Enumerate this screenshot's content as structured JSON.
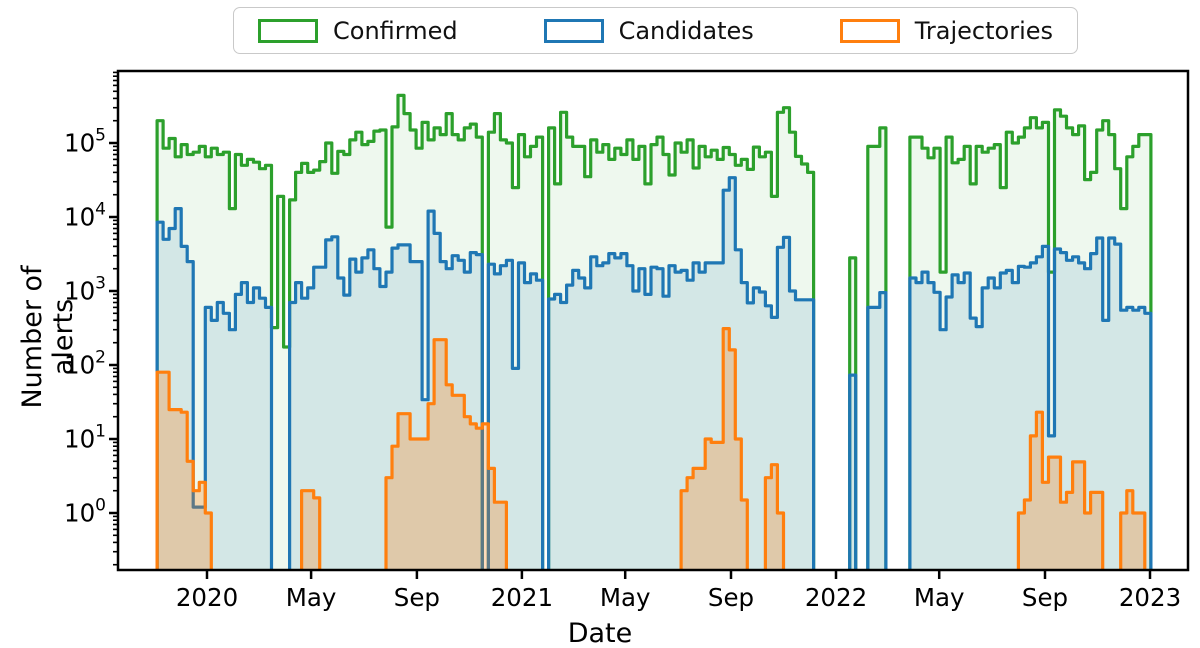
{
  "chart_data": {
    "type": "step-histogram",
    "title": "",
    "xlabel": "Date",
    "ylabel": "Number of alerts",
    "y_scale": "log",
    "ylim": [
      0.17,
      970000
    ],
    "grid": false,
    "legend_position": "top-center",
    "bin_start_date": "2019-11-04",
    "bin_days": 7,
    "xticks": [
      {
        "label": "2020",
        "date": "2020-01-01"
      },
      {
        "label": "May",
        "date": "2020-05-01"
      },
      {
        "label": "Sep",
        "date": "2020-09-01"
      },
      {
        "label": "2021",
        "date": "2021-01-01"
      },
      {
        "label": "May",
        "date": "2021-05-01"
      },
      {
        "label": "Sep",
        "date": "2021-09-01"
      },
      {
        "label": "2022",
        "date": "2022-01-01"
      },
      {
        "label": "May",
        "date": "2022-05-01"
      },
      {
        "label": "Sep",
        "date": "2022-09-01"
      },
      {
        "label": "2023",
        "date": "2023-01-01"
      }
    ],
    "yticks": [
      "10^0",
      "10^1",
      "10^2",
      "10^3",
      "10^4",
      "10^5"
    ],
    "series": [
      {
        "name": "Confirmed",
        "color": "#2ca02c",
        "fill_alpha": 0.08,
        "values": [
          200000,
          85000,
          115000,
          65000,
          95000,
          70000,
          75000,
          90000,
          65000,
          85000,
          70000,
          75000,
          13000,
          70000,
          50000,
          60000,
          55000,
          45000,
          50000,
          320,
          19000,
          175,
          17000,
          40000,
          53000,
          40000,
          43000,
          56000,
          100000,
          39000,
          77000,
          70000,
          110000,
          140000,
          95000,
          105000,
          145000,
          150000,
          7300,
          165000,
          440000,
          250000,
          150000,
          85000,
          190000,
          110000,
          160000,
          130000,
          250000,
          130000,
          110000,
          160000,
          180000,
          120000,
          0,
          140000,
          250000,
          110000,
          100000,
          25000,
          130000,
          65000,
          90000,
          120000,
          0,
          160000,
          28000,
          260000,
          120000,
          90000,
          90000,
          35000,
          110000,
          75000,
          95000,
          60000,
          85000,
          70000,
          110000,
          60000,
          90000,
          28000,
          95000,
          120000,
          70000,
          37000,
          100000,
          75000,
          110000,
          46000,
          90000,
          65000,
          80000,
          60000,
          87000,
          70000,
          50000,
          60000,
          44000,
          88000,
          65000,
          75000,
          19000,
          260000,
          300000,
          140000,
          66000,
          52000,
          40000,
          null,
          null,
          null,
          null,
          null,
          null,
          2800,
          null,
          null,
          90000,
          90000,
          160000,
          null,
          null,
          null,
          null,
          120000,
          120000,
          85000,
          63000,
          85000,
          1800,
          120000,
          54000,
          60000,
          90000,
          28000,
          90000,
          75000,
          85000,
          95000,
          25000,
          140000,
          100000,
          120000,
          160000,
          220000,
          160000,
          190000,
          1800,
          280000,
          230000,
          160000,
          130000,
          170000,
          32000,
          40000,
          150000,
          200000,
          130000,
          45000,
          13000,
          65000,
          90000,
          130000,
          130000
        ]
      },
      {
        "name": "Candidates",
        "color": "#1f77b4",
        "fill_alpha": 0.13,
        "values": [
          8500,
          5000,
          7000,
          13000,
          4000,
          2500,
          1.2,
          1.2,
          600,
          400,
          700,
          500,
          300,
          900,
          1300,
          700,
          1100,
          800,
          600,
          0,
          0,
          0,
          700,
          1300,
          800,
          1100,
          2100,
          2100,
          4900,
          5400,
          1500,
          880,
          2700,
          1800,
          2800,
          3600,
          2000,
          1150,
          1800,
          3800,
          4200,
          4200,
          2500,
          2500,
          34,
          12000,
          6000,
          2500,
          2000,
          3000,
          2600,
          1800,
          3300,
          3100,
          0,
          2300,
          1700,
          2200,
          2600,
          90,
          2400,
          1300,
          1700,
          1400,
          0,
          780,
          900,
          700,
          1200,
          1900,
          1500,
          1100,
          2900,
          2200,
          2400,
          3200,
          2800,
          3200,
          2200,
          1000,
          2000,
          900,
          2100,
          2000,
          850,
          2200,
          1800,
          1900,
          1400,
          2400,
          1800,
          2400,
          2400,
          2400,
          23000,
          34000,
          3600,
          1300,
          690,
          1100,
          970,
          630,
          440,
          3900,
          5300,
          1000,
          760,
          760,
          760,
          null,
          null,
          null,
          null,
          null,
          null,
          73,
          null,
          null,
          600,
          600,
          950,
          null,
          null,
          null,
          null,
          1500,
          1300,
          1800,
          1300,
          960,
          300,
          830,
          1650,
          1300,
          1750,
          430,
          330,
          1100,
          1500,
          1100,
          1750,
          1900,
          1300,
          2150,
          2100,
          2400,
          2900,
          4000,
          11,
          3700,
          3300,
          2600,
          2900,
          2400,
          2000,
          3200,
          5200,
          400,
          5200,
          4300,
          550,
          600,
          550,
          600,
          500
        ]
      },
      {
        "name": "Trajectories",
        "color": "#ff7f0e",
        "fill_alpha": 0.28,
        "values": [
          80,
          80,
          25,
          25,
          23,
          5,
          2,
          2.6,
          1,
          0,
          0,
          0,
          0,
          0,
          0,
          0,
          0,
          0,
          0,
          0,
          0,
          0,
          0,
          0,
          2,
          2,
          1.6,
          0,
          0,
          0,
          0,
          0,
          0,
          0,
          0,
          0,
          0,
          0,
          3,
          8,
          22,
          22,
          10,
          10,
          10,
          30,
          220,
          220,
          54,
          39,
          39,
          20,
          16,
          14,
          16,
          4,
          1.4,
          1.4,
          0,
          0,
          0,
          0,
          0,
          0,
          0,
          0,
          0,
          0,
          0,
          0,
          0,
          0,
          0,
          0,
          0,
          0,
          0,
          0,
          0,
          0,
          0,
          0,
          0,
          0,
          0,
          0,
          0,
          2,
          3,
          4,
          4,
          10,
          9,
          9,
          310,
          160,
          10,
          1.5,
          0,
          0,
          0,
          3,
          4.5,
          1,
          0,
          0,
          0,
          0,
          0,
          null,
          null,
          null,
          null,
          null,
          null,
          0,
          null,
          null,
          0,
          0,
          0,
          null,
          null,
          null,
          null,
          0,
          0,
          0,
          0,
          0,
          0,
          0,
          0,
          0,
          0,
          0,
          0,
          0,
          0,
          0,
          0,
          0,
          0,
          1,
          1.5,
          11,
          23,
          2.6,
          5.7,
          5.7,
          1.4,
          1.9,
          4.9,
          4.9,
          1,
          1.9,
          1.9,
          0,
          0,
          0,
          1,
          2,
          1,
          1,
          0
        ]
      }
    ]
  }
}
